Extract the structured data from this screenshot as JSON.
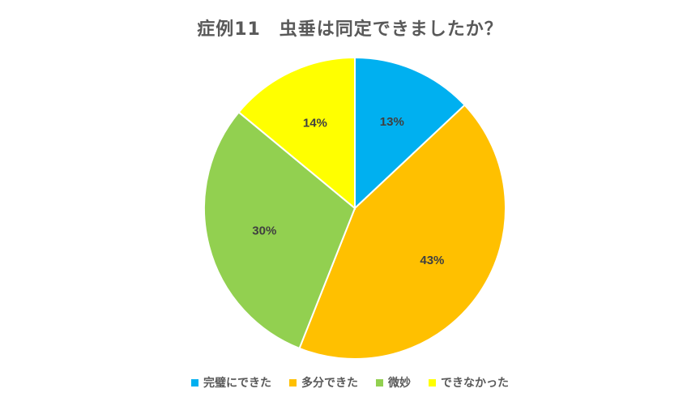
{
  "chart_data": {
    "type": "pie",
    "title": "症例11　虫垂は同定できましたか？",
    "categories": [
      "完璧にできた",
      "多分できた",
      "微妙",
      "できなかった"
    ],
    "values": [
      13,
      43,
      30,
      14
    ],
    "labels": [
      "13%",
      "43%",
      "30%",
      "14%"
    ],
    "colors": [
      "#00B0F0",
      "#FFC000",
      "#92D050",
      "#FFFF00"
    ],
    "legend_position": "bottom"
  }
}
